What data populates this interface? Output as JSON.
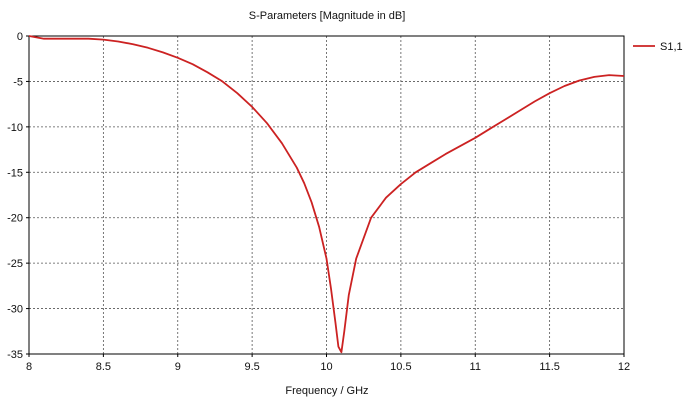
{
  "chart_data": {
    "type": "line",
    "title": "S-Parameters [Magnitude in dB]",
    "xlabel": "Frequency / GHz",
    "ylabel": "",
    "xlim": [
      8,
      12
    ],
    "ylim": [
      -35,
      0
    ],
    "x_ticks": [
      "8",
      "8.5",
      "9",
      "9.5",
      "10",
      "10.5",
      "11",
      "11.5",
      "12"
    ],
    "y_ticks": [
      "0",
      "-5",
      "-10",
      "-15",
      "-20",
      "-25",
      "-30",
      "-35"
    ],
    "grid": true,
    "legend_position": "top-right",
    "series": [
      {
        "name": "S1,1",
        "color": "#cc2222",
        "x": [
          8.0,
          8.1,
          8.2,
          8.3,
          8.4,
          8.5,
          8.6,
          8.7,
          8.8,
          8.9,
          9.0,
          9.1,
          9.2,
          9.3,
          9.4,
          9.5,
          9.6,
          9.7,
          9.8,
          9.85,
          9.9,
          9.95,
          10.0,
          10.03,
          10.06,
          10.08,
          10.1,
          10.12,
          10.15,
          10.2,
          10.3,
          10.4,
          10.5,
          10.6,
          10.7,
          10.8,
          10.9,
          11.0,
          11.1,
          11.2,
          11.3,
          11.4,
          11.5,
          11.6,
          11.7,
          11.8,
          11.9,
          12.0
        ],
        "y": [
          0.0,
          -0.3,
          -0.3,
          -0.3,
          -0.3,
          -0.4,
          -0.6,
          -0.9,
          -1.3,
          -1.8,
          -2.4,
          -3.1,
          -4.0,
          -5.0,
          -6.3,
          -7.8,
          -9.6,
          -11.8,
          -14.5,
          -16.2,
          -18.3,
          -21.0,
          -24.5,
          -27.8,
          -31.5,
          -34.2,
          -34.8,
          -32.5,
          -28.5,
          -24.5,
          -20.0,
          -17.8,
          -16.3,
          -15.0,
          -14.0,
          -13.0,
          -12.1,
          -11.2,
          -10.2,
          -9.2,
          -8.2,
          -7.2,
          -6.3,
          -5.5,
          -4.9,
          -4.5,
          -4.3,
          -4.4
        ]
      }
    ]
  }
}
